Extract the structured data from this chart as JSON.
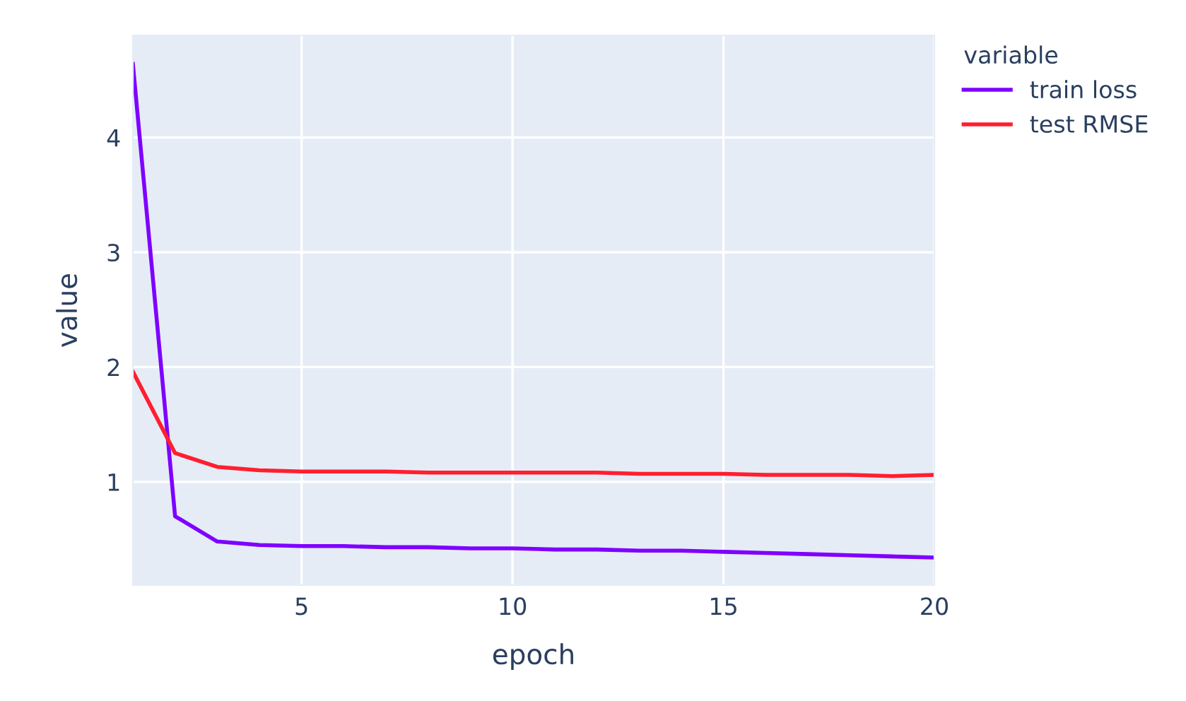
{
  "chart_data": {
    "type": "line",
    "xlabel": "epoch",
    "ylabel": "value",
    "legend_title": "variable",
    "x": [
      1,
      2,
      3,
      4,
      5,
      6,
      7,
      8,
      9,
      10,
      11,
      12,
      13,
      14,
      15,
      16,
      17,
      18,
      19,
      20
    ],
    "series": [
      {
        "name": "train loss",
        "color": "#7f00ff",
        "values": [
          4.64,
          0.7,
          0.48,
          0.45,
          0.44,
          0.44,
          0.43,
          0.43,
          0.42,
          0.42,
          0.41,
          0.41,
          0.4,
          0.4,
          0.39,
          0.38,
          0.37,
          0.36,
          0.35,
          0.34
        ]
      },
      {
        "name": "test RMSE",
        "color": "#ff1f2f",
        "values": [
          1.96,
          1.25,
          1.13,
          1.1,
          1.09,
          1.09,
          1.09,
          1.08,
          1.08,
          1.08,
          1.08,
          1.08,
          1.07,
          1.07,
          1.07,
          1.06,
          1.06,
          1.06,
          1.05,
          1.06
        ]
      }
    ],
    "xlim": [
      1,
      20
    ],
    "xticks": [
      5,
      10,
      15,
      20
    ],
    "ylim": [
      0.1,
      4.89
    ],
    "yticks": [
      1,
      2,
      3,
      4
    ],
    "grid": true,
    "legend": "right",
    "marker": "none",
    "line_style": "solid"
  }
}
